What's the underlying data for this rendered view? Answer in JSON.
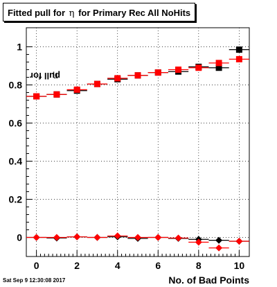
{
  "header": {
    "title_pre": "Fitted pull for",
    "title_greek": "η",
    "title_post": "for Primary Rec All NoHits"
  },
  "axes": {
    "ylabel_pre": "pull for",
    "ylabel_greek": "η",
    "xlabel": "No. of Bad Points"
  },
  "footer": {
    "timestamp": "Sat Sep  9 12:30:08 2017"
  },
  "chart_data": {
    "type": "scatter",
    "x_ticks": [
      0,
      2,
      4,
      6,
      8,
      10
    ],
    "y_ticks": [
      "0",
      "0.2",
      "0.4",
      "0.6",
      "0.8",
      "1"
    ],
    "xlim": [
      -0.5,
      10.5
    ],
    "ylim": [
      -0.1,
      1.1
    ],
    "x_error": 0.5,
    "grid": true,
    "series": [
      {
        "color": "#000000",
        "mean_marker": "square",
        "mean": [
          [
            0,
            0.74
          ],
          [
            1,
            0.75
          ],
          [
            2,
            0.77
          ],
          [
            3,
            0.805
          ],
          [
            4,
            0.83
          ],
          [
            5,
            0.85
          ],
          [
            6,
            0.865
          ],
          [
            7,
            0.87
          ],
          [
            8,
            0.895
          ],
          [
            9,
            0.89
          ],
          [
            10,
            0.985
          ]
        ],
        "sigma_marker": "diamond",
        "sigma": [
          [
            0,
            0.0
          ],
          [
            1,
            -0.003
          ],
          [
            2,
            0.003
          ],
          [
            3,
            0.0
          ],
          [
            4,
            0.003
          ],
          [
            5,
            -0.005
          ],
          [
            6,
            0.0
          ],
          [
            7,
            -0.005
          ],
          [
            8,
            -0.01
          ],
          [
            9,
            -0.015
          ],
          [
            10,
            -0.02
          ]
        ]
      },
      {
        "color": "#ff0000",
        "mean_marker": "square",
        "mean": [
          [
            0,
            0.74
          ],
          [
            1,
            0.75
          ],
          [
            2,
            0.775
          ],
          [
            3,
            0.805
          ],
          [
            4,
            0.835
          ],
          [
            5,
            0.85
          ],
          [
            6,
            0.865
          ],
          [
            7,
            0.88
          ],
          [
            8,
            0.89
          ],
          [
            9,
            0.915
          ],
          [
            10,
            0.935
          ]
        ],
        "sigma_marker": "diamond",
        "sigma": [
          [
            0,
            0.0
          ],
          [
            1,
            0.0
          ],
          [
            2,
            0.003
          ],
          [
            3,
            0.0
          ],
          [
            4,
            0.008
          ],
          [
            5,
            0.0
          ],
          [
            6,
            0.0
          ],
          [
            7,
            -0.003
          ],
          [
            8,
            -0.025
          ],
          [
            9,
            -0.055
          ],
          [
            10,
            -0.02
          ]
        ]
      }
    ]
  }
}
